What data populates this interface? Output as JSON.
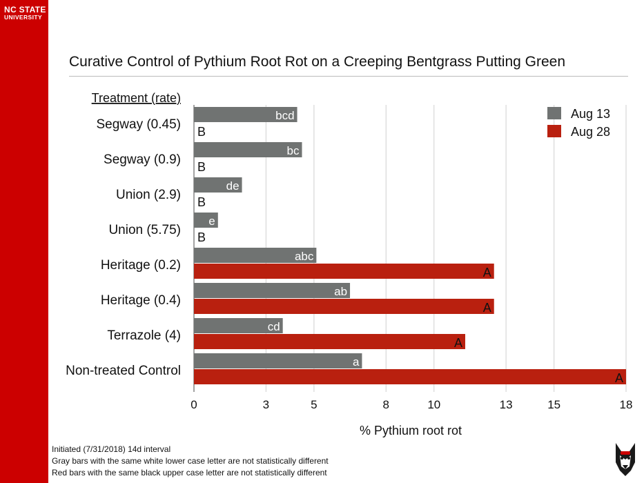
{
  "brand": {
    "line1": "NC STATE",
    "line2": "UNIVERSITY"
  },
  "footnotes": [
    "Initiated (7/31/2018) 14d interval",
    "Gray bars with the same white lower case letter are not statistically different",
    "Red bars with the same black upper case letter are not statistically different"
  ],
  "colors": {
    "brand_red": "#cc0000",
    "gray_series": "#707372",
    "red_series": "#b9200f"
  },
  "chart_data": {
    "type": "bar",
    "orientation": "horizontal",
    "title": "Curative Control of Pythium Root Rot on a Creeping Bentgrass Putting Green",
    "category_header": "Treatment (rate)",
    "categories": [
      "Segway (0.45)",
      "Segway (0.9)",
      "Union (2.9)",
      "Union (5.75)",
      "Heritage (0.2)",
      "Heritage (0.4)",
      "Terrazole (4)",
      "Non-treated Control"
    ],
    "series": [
      {
        "name": "Aug 13",
        "color": "#707372",
        "values": [
          4.3,
          4.5,
          2.0,
          1.0,
          5.1,
          6.5,
          3.7,
          7.0
        ],
        "labels": [
          "bcd",
          "bc",
          "de",
          "e",
          "abc",
          "ab",
          "cd",
          "a"
        ]
      },
      {
        "name": "Aug 28",
        "color": "#b9200f",
        "values": [
          0,
          0,
          0,
          0,
          12.5,
          12.5,
          11.3,
          18.0
        ],
        "labels": [
          "B",
          "B",
          "B",
          "B",
          "A",
          "A",
          "A",
          "A"
        ]
      }
    ],
    "xlabel": "% Pythium root rot",
    "xticks": [
      0,
      3,
      5,
      8,
      10,
      13,
      15,
      18
    ],
    "xlim": [
      0,
      18
    ],
    "grid": true,
    "legend": "top-right"
  }
}
